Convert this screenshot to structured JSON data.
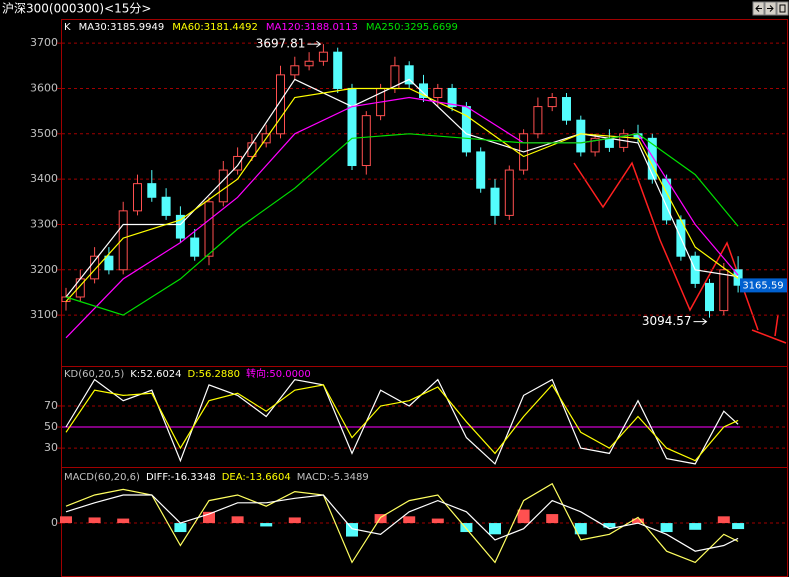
{
  "window_title": "沪深300(000300)<15分>",
  "legend_separator": ":",
  "chart_data": [
    {
      "type": "candlestick",
      "label": "K",
      "open": [
        3130,
        3140,
        3180,
        3230,
        3200,
        3330,
        3390,
        3360,
        3320,
        3270,
        3230,
        3350,
        3420,
        3450,
        3480,
        3500,
        3630,
        3650,
        3660,
        3680,
        3600,
        3430,
        3540,
        3600,
        3650,
        3610,
        3580,
        3600,
        3560,
        3460,
        3380,
        3320,
        3420,
        3500,
        3560,
        3580,
        3530,
        3460,
        3490,
        3470,
        3500,
        3490,
        3400,
        3310,
        3230,
        3170,
        3110,
        3200
      ],
      "high": [
        3160,
        3200,
        3250,
        3250,
        3350,
        3410,
        3420,
        3380,
        3340,
        3290,
        3360,
        3440,
        3470,
        3500,
        3520,
        3650,
        3670,
        3680,
        3697.81,
        3690,
        3610,
        3550,
        3610,
        3670,
        3660,
        3630,
        3610,
        3610,
        3570,
        3470,
        3400,
        3430,
        3510,
        3580,
        3590,
        3590,
        3540,
        3500,
        3510,
        3510,
        3520,
        3500,
        3410,
        3320,
        3240,
        3180,
        3215,
        3230
      ],
      "low": [
        3110,
        3130,
        3170,
        3190,
        3190,
        3320,
        3350,
        3310,
        3260,
        3220,
        3210,
        3340,
        3410,
        3440,
        3470,
        3490,
        3620,
        3640,
        3650,
        3590,
        3420,
        3410,
        3530,
        3590,
        3600,
        3570,
        3560,
        3550,
        3450,
        3370,
        3300,
        3310,
        3410,
        3490,
        3550,
        3520,
        3450,
        3450,
        3460,
        3460,
        3480,
        3390,
        3300,
        3220,
        3160,
        3094.57,
        3100,
        3150
      ],
      "close": [
        3140,
        3180,
        3230,
        3200,
        3330,
        3390,
        3360,
        3320,
        3270,
        3230,
        3350,
        3420,
        3450,
        3480,
        3500,
        3630,
        3650,
        3660,
        3680,
        3600,
        3430,
        3540,
        3600,
        3650,
        3610,
        3580,
        3600,
        3560,
        3460,
        3380,
        3320,
        3420,
        3500,
        3560,
        3580,
        3530,
        3460,
        3490,
        3470,
        3500,
        3490,
        3400,
        3310,
        3230,
        3170,
        3110,
        3200,
        3166
      ],
      "up_color": "#ff5050",
      "down_color": "#54fcfc",
      "ylim": [
        2990,
        3751
      ],
      "yticks": [
        3100,
        3200,
        3300,
        3400,
        3500,
        3600,
        3700
      ],
      "grid": true,
      "series": [
        {
          "name": "MA30",
          "color": "#ffffff",
          "last_value": 3185.9949,
          "x": [
            0,
            4,
            8,
            12,
            16,
            20,
            24,
            28,
            32,
            36,
            40,
            44,
            47
          ],
          "values": [
            3140,
            3300,
            3300,
            3430,
            3620,
            3560,
            3620,
            3500,
            3460,
            3500,
            3480,
            3200,
            3185
          ]
        },
        {
          "name": "MA60",
          "color": "#ffff00",
          "last_value": 3181.4492,
          "x": [
            0,
            4,
            8,
            12,
            16,
            20,
            24,
            28,
            32,
            36,
            40,
            44,
            47
          ],
          "values": [
            3130,
            3270,
            3310,
            3400,
            3580,
            3600,
            3600,
            3540,
            3450,
            3500,
            3490,
            3250,
            3181
          ]
        },
        {
          "name": "MA120",
          "color": "#ff00ff",
          "last_value": 3188.0113,
          "x": [
            0,
            4,
            8,
            12,
            16,
            20,
            24,
            28,
            32,
            36,
            40,
            44,
            47
          ],
          "values": [
            3050,
            3180,
            3260,
            3360,
            3500,
            3560,
            3580,
            3560,
            3480,
            3480,
            3500,
            3300,
            3188
          ]
        },
        {
          "name": "MA250",
          "color": "#00e000",
          "last_value": 3295.6699,
          "x": [
            0,
            4,
            8,
            12,
            16,
            20,
            24,
            28,
            32,
            36,
            40,
            44,
            47
          ],
          "values": [
            3140,
            3100,
            3180,
            3290,
            3380,
            3490,
            3500,
            3490,
            3480,
            3480,
            3500,
            3410,
            3296
          ]
        }
      ],
      "annotations": [
        {
          "index": 18,
          "value": 3697.81
        },
        {
          "index": 45,
          "value": 3094.57
        }
      ],
      "last_price": 3165.59
    },
    {
      "type": "kd",
      "label": "KD(60,20,5)",
      "ylim": [
        13,
        107
      ],
      "yticks": [
        30,
        50,
        70
      ],
      "grid": true,
      "series": [
        {
          "name": "K",
          "color": "#ffffff",
          "last_value": 52.6024,
          "x": [
            0,
            2,
            4,
            6,
            8,
            10,
            12,
            14,
            16,
            18,
            20,
            22,
            24,
            26,
            28,
            30,
            32,
            34,
            36,
            38,
            40,
            42,
            44,
            46,
            47
          ],
          "values": [
            50,
            95,
            75,
            85,
            18,
            90,
            80,
            60,
            95,
            90,
            25,
            85,
            70,
            95,
            40,
            15,
            80,
            95,
            30,
            25,
            75,
            20,
            15,
            65,
            52.6024
          ]
        },
        {
          "name": "D",
          "color": "#ffff00",
          "last_value": 56.288,
          "last_label": "56.2880",
          "x": [
            0,
            2,
            4,
            6,
            8,
            10,
            12,
            14,
            16,
            18,
            20,
            22,
            24,
            26,
            28,
            30,
            32,
            34,
            36,
            38,
            40,
            42,
            44,
            46,
            47
          ],
          "values": [
            45,
            85,
            80,
            82,
            30,
            75,
            82,
            65,
            85,
            90,
            40,
            70,
            75,
            88,
            55,
            25,
            60,
            90,
            45,
            30,
            60,
            30,
            18,
            50,
            56.288
          ]
        }
      ],
      "turn": {
        "name": "转向",
        "color": "#ff00ff",
        "value": 50,
        "label": "50.0000"
      }
    },
    {
      "type": "macd",
      "label": "MACD(60,20,6)",
      "ylim": [
        -48,
        49
      ],
      "yticks": [
        0
      ],
      "grid": true,
      "series": [
        {
          "name": "DIFF",
          "color": "#ffffff",
          "line_color": "#ffff60",
          "last_value": -16.3348,
          "x": [
            0,
            2,
            4,
            6,
            8,
            10,
            12,
            14,
            16,
            18,
            20,
            22,
            24,
            26,
            28,
            30,
            32,
            34,
            36,
            38,
            40,
            42,
            44,
            46,
            47
          ],
          "values": [
            15,
            25,
            30,
            25,
            -20,
            20,
            25,
            15,
            28,
            25,
            -35,
            5,
            20,
            25,
            -5,
            -35,
            20,
            35,
            -15,
            -10,
            5,
            -25,
            -35,
            -10,
            -16.3348
          ]
        },
        {
          "name": "DEA",
          "color": "#ffff00",
          "line_color": "#ffffff",
          "last_value": -13.6604,
          "x": [
            0,
            2,
            4,
            6,
            8,
            10,
            12,
            14,
            16,
            18,
            20,
            22,
            24,
            26,
            28,
            30,
            32,
            34,
            36,
            38,
            40,
            42,
            44,
            46,
            47
          ],
          "values": [
            10,
            18,
            25,
            25,
            0,
            8,
            18,
            18,
            22,
            25,
            -5,
            -10,
            10,
            20,
            10,
            -15,
            -5,
            20,
            10,
            -5,
            0,
            -10,
            -25,
            -20,
            -13.6604
          ]
        }
      ],
      "bars": {
        "name": "MACD",
        "color": "#c0c0c0",
        "up_color": "#ff5050",
        "down_color": "#54fcfc",
        "last_value": -5.3489,
        "x": [
          0,
          2,
          4,
          6,
          8,
          10,
          12,
          14,
          16,
          18,
          20,
          22,
          24,
          26,
          28,
          30,
          32,
          34,
          36,
          38,
          40,
          42,
          44,
          46,
          47
        ],
        "values": [
          6,
          5,
          4,
          0,
          -8,
          10,
          6,
          -3,
          5,
          0,
          -12,
          8,
          6,
          4,
          -8,
          -10,
          12,
          8,
          -10,
          -4,
          4,
          -8,
          -6,
          6,
          -5.3489
        ]
      }
    }
  ]
}
